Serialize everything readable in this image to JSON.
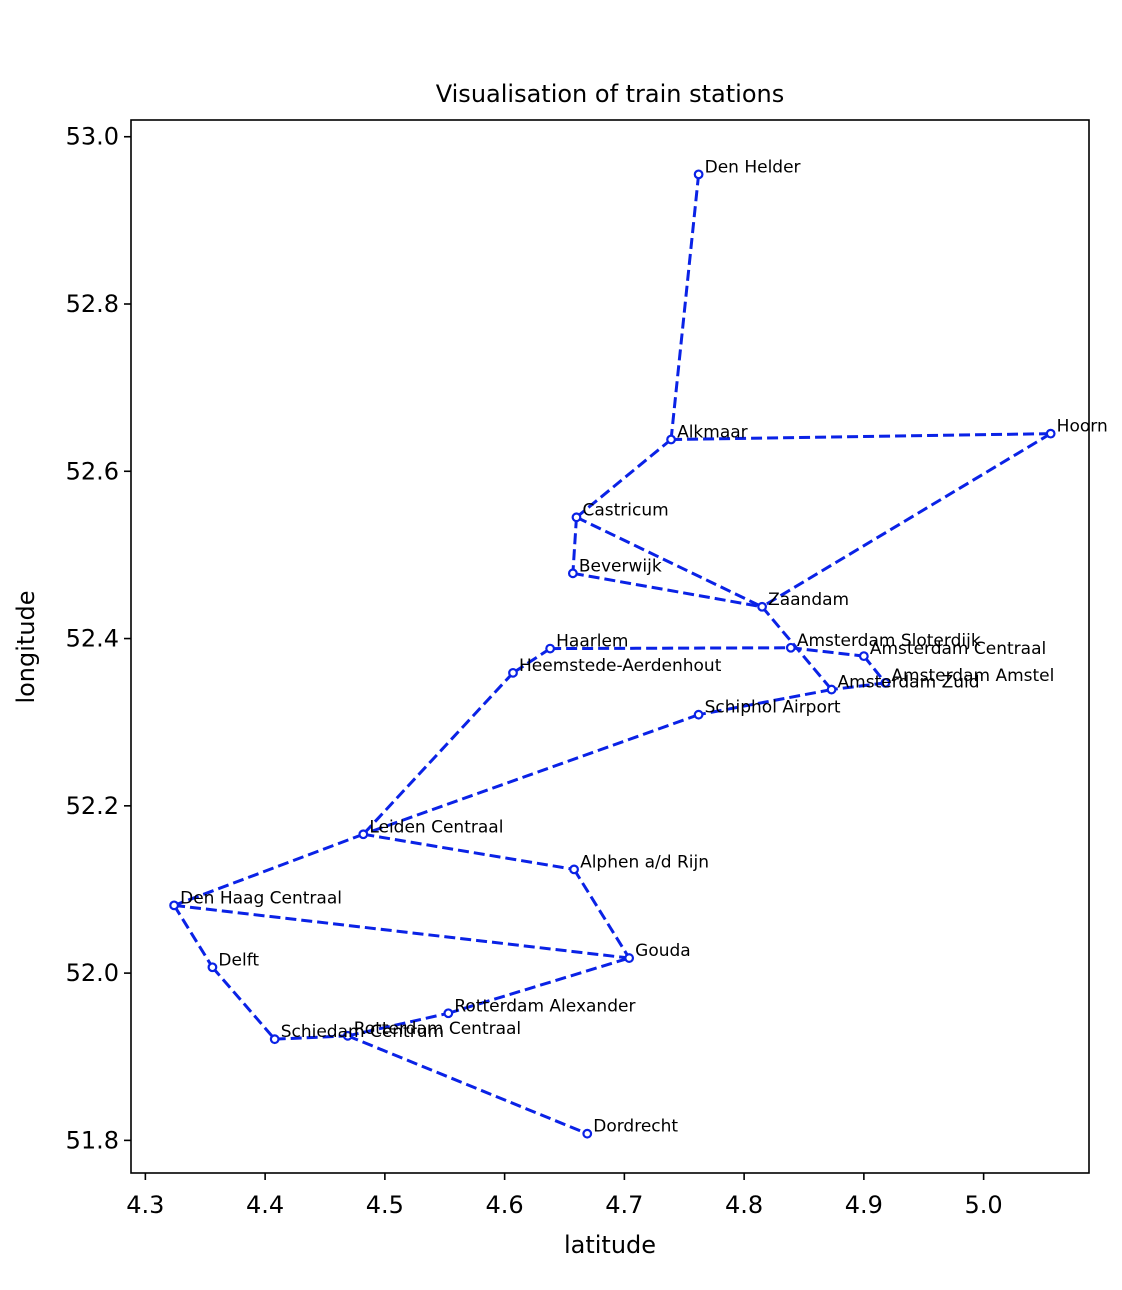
{
  "chart_data": {
    "type": "scatter",
    "title": "Visualisation of train stations",
    "xlabel": "latitude",
    "ylabel": "longitude",
    "xlim": [
      4.288,
      5.088
    ],
    "ylim": [
      51.761,
      53.02
    ],
    "xticks": [
      4.3,
      4.4,
      4.5,
      4.6,
      4.7,
      4.8,
      4.9,
      5.0
    ],
    "xtick_labels": [
      "4.3",
      "4.4",
      "4.5",
      "4.6",
      "4.7",
      "4.8",
      "4.9",
      "5.0"
    ],
    "yticks": [
      51.8,
      52.0,
      52.2,
      52.4,
      52.6,
      52.8,
      53.0
    ],
    "ytick_labels": [
      "51.8",
      "52.0",
      "52.2",
      "52.4",
      "52.6",
      "52.8",
      "53.0"
    ],
    "grid": false,
    "line_color": "#0a22e6",
    "line_style": "dashed",
    "stations": [
      {
        "name": "Den Helder",
        "x": 4.762,
        "y": 52.955
      },
      {
        "name": "Alkmaar",
        "x": 4.739,
        "y": 52.638
      },
      {
        "name": "Hoorn",
        "x": 5.056,
        "y": 52.645
      },
      {
        "name": "Castricum",
        "x": 4.66,
        "y": 52.545
      },
      {
        "name": "Beverwijk",
        "x": 4.657,
        "y": 52.478
      },
      {
        "name": "Zaandam",
        "x": 4.815,
        "y": 52.438
      },
      {
        "name": "Haarlem",
        "x": 4.638,
        "y": 52.388
      },
      {
        "name": "Amsterdam Sloterdijk",
        "x": 4.839,
        "y": 52.389
      },
      {
        "name": "Amsterdam Centraal",
        "x": 4.9,
        "y": 52.379
      },
      {
        "name": "Heemstede-Aerdenhout",
        "x": 4.607,
        "y": 52.359
      },
      {
        "name": "Amsterdam Amstel",
        "x": 4.918,
        "y": 52.347
      },
      {
        "name": "Amsterdam Zuid",
        "x": 4.873,
        "y": 52.339
      },
      {
        "name": "Schiphol Airport",
        "x": 4.762,
        "y": 52.309
      },
      {
        "name": "Leiden Centraal",
        "x": 4.482,
        "y": 52.166
      },
      {
        "name": "Alphen a/d Rijn",
        "x": 4.658,
        "y": 52.124
      },
      {
        "name": "Den Haag Centraal",
        "x": 4.324,
        "y": 52.081
      },
      {
        "name": "Gouda",
        "x": 4.704,
        "y": 52.018
      },
      {
        "name": "Delft",
        "x": 4.356,
        "y": 52.007
      },
      {
        "name": "Rotterdam Alexander",
        "x": 4.553,
        "y": 51.952
      },
      {
        "name": "Schiedam Centrum",
        "x": 4.408,
        "y": 51.921
      },
      {
        "name": "Rotterdam Centraal",
        "x": 4.469,
        "y": 51.925
      },
      {
        "name": "Dordrecht",
        "x": 4.669,
        "y": 51.808
      }
    ],
    "connections": [
      [
        "Den Helder",
        "Alkmaar"
      ],
      [
        "Alkmaar",
        "Hoorn"
      ],
      [
        "Alkmaar",
        "Castricum"
      ],
      [
        "Hoorn",
        "Zaandam"
      ],
      [
        "Castricum",
        "Beverwijk"
      ],
      [
        "Castricum",
        "Zaandam"
      ],
      [
        "Beverwijk",
        "Zaandam"
      ],
      [
        "Zaandam",
        "Amsterdam Zuid"
      ],
      [
        "Haarlem",
        "Amsterdam Sloterdijk"
      ],
      [
        "Haarlem",
        "Heemstede-Aerdenhout"
      ],
      [
        "Amsterdam Sloterdijk",
        "Amsterdam Centraal"
      ],
      [
        "Amsterdam Centraal",
        "Amsterdam Amstel"
      ],
      [
        "Amsterdam Amstel",
        "Amsterdam Zuid"
      ],
      [
        "Amsterdam Zuid",
        "Schiphol Airport"
      ],
      [
        "Schiphol Airport",
        "Leiden Centraal"
      ],
      [
        "Heemstede-Aerdenhout",
        "Leiden Centraal"
      ],
      [
        "Leiden Centraal",
        "Alphen a/d Rijn"
      ],
      [
        "Leiden Centraal",
        "Den Haag Centraal"
      ],
      [
        "Alphen a/d Rijn",
        "Gouda"
      ],
      [
        "Den Haag Centraal",
        "Gouda"
      ],
      [
        "Den Haag Centraal",
        "Delft"
      ],
      [
        "Delft",
        "Schiedam Centrum"
      ],
      [
        "Schiedam Centrum",
        "Rotterdam Centraal"
      ],
      [
        "Rotterdam Centraal",
        "Rotterdam Alexander"
      ],
      [
        "Rotterdam Centraal",
        "Dordrecht"
      ],
      [
        "Rotterdam Alexander",
        "Gouda"
      ]
    ]
  }
}
